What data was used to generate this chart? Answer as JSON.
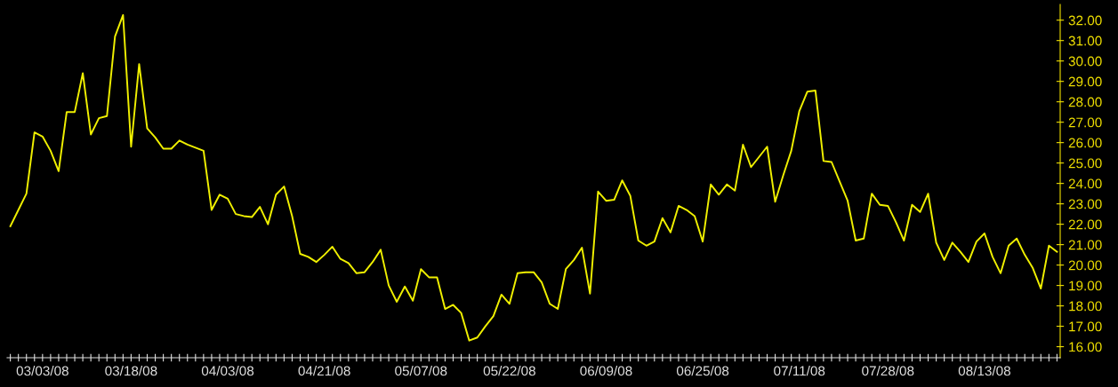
{
  "chart_data": {
    "type": "line",
    "categories": [
      null,
      null,
      null,
      null,
      "03/03/08",
      null,
      null,
      null,
      null,
      null,
      null,
      null,
      null,
      null,
      null,
      "03/18/08",
      null,
      null,
      null,
      null,
      null,
      null,
      null,
      null,
      null,
      null,
      null,
      "04/03/08",
      null,
      null,
      null,
      null,
      null,
      null,
      null,
      null,
      null,
      null,
      null,
      "04/21/08",
      null,
      null,
      null,
      null,
      null,
      null,
      null,
      null,
      null,
      null,
      null,
      "05/07/08",
      null,
      null,
      null,
      null,
      null,
      null,
      null,
      null,
      null,
      null,
      "05/22/08",
      null,
      null,
      null,
      null,
      null,
      null,
      null,
      null,
      null,
      null,
      null,
      "06/09/08",
      null,
      null,
      null,
      null,
      null,
      null,
      null,
      null,
      null,
      null,
      null,
      "06/25/08",
      null,
      null,
      null,
      null,
      null,
      null,
      null,
      null,
      null,
      null,
      null,
      "07/11/08",
      null,
      null,
      null,
      null,
      null,
      null,
      null,
      null,
      null,
      null,
      "07/28/08",
      null,
      null,
      null,
      null,
      null,
      null,
      null,
      null,
      null,
      null,
      null,
      "08/13/08",
      null,
      null,
      null,
      null,
      null,
      null,
      null,
      null,
      null
    ],
    "values": [
      21.9,
      22.7,
      23.5,
      26.5,
      26.3,
      25.6,
      24.6,
      27.5,
      27.5,
      29.4,
      26.4,
      27.2,
      27.3,
      31.2,
      32.25,
      25.8,
      29.85,
      26.7,
      26.25,
      25.7,
      25.7,
      26.1,
      25.9,
      25.75,
      25.6,
      22.7,
      23.45,
      23.25,
      22.5,
      22.4,
      22.35,
      22.85,
      22.0,
      23.45,
      23.85,
      22.4,
      20.55,
      20.4,
      20.15,
      20.5,
      20.9,
      20.3,
      20.1,
      19.6,
      19.65,
      20.15,
      20.75,
      19.0,
      18.2,
      18.95,
      18.25,
      19.8,
      19.4,
      19.4,
      17.85,
      18.05,
      17.65,
      16.3,
      16.45,
      17.0,
      17.5,
      18.55,
      18.1,
      19.6,
      19.65,
      19.65,
      19.15,
      18.1,
      17.85,
      19.8,
      20.25,
      20.85,
      18.6,
      23.6,
      23.15,
      23.2,
      24.15,
      23.4,
      21.2,
      20.95,
      21.15,
      22.3,
      21.6,
      22.9,
      22.7,
      22.4,
      21.15,
      23.95,
      23.45,
      23.95,
      23.65,
      25.9,
      24.8,
      25.3,
      25.8,
      23.1,
      24.4,
      25.6,
      27.55,
      28.5,
      28.55,
      25.1,
      25.05,
      24.1,
      23.15,
      21.2,
      21.3,
      23.5,
      22.95,
      22.9,
      22.1,
      21.2,
      22.95,
      22.6,
      23.5,
      21.1,
      20.25,
      21.1,
      20.65,
      20.15,
      21.15,
      21.55,
      20.4,
      19.6,
      20.95,
      21.3,
      20.5,
      19.85,
      18.85,
      20.95,
      20.65
    ],
    "color": "#f0f000",
    "ylim": [
      15.46,
      32.77
    ],
    "yticks": [
      {
        "value": 16,
        "label": "16.00"
      },
      {
        "value": 17,
        "label": "17.00"
      },
      {
        "value": 18,
        "label": "18.00"
      },
      {
        "value": 19,
        "label": "19.00"
      },
      {
        "value": 20,
        "label": "20.00"
      },
      {
        "value": 21,
        "label": "21.00"
      },
      {
        "value": 22,
        "label": "22.00"
      },
      {
        "value": 23,
        "label": "23.00"
      },
      {
        "value": 24,
        "label": "24.00"
      },
      {
        "value": 25,
        "label": "25.00"
      },
      {
        "value": 26,
        "label": "26.00"
      },
      {
        "value": 27,
        "label": "27.00"
      },
      {
        "value": 28,
        "label": "28.00"
      },
      {
        "value": 29,
        "label": "29.00"
      },
      {
        "value": 30,
        "label": "30.00"
      },
      {
        "value": 31,
        "label": "31.00"
      },
      {
        "value": 32,
        "label": "32.00"
      }
    ],
    "grid": false,
    "marker": "none",
    "line_style": "solid"
  }
}
